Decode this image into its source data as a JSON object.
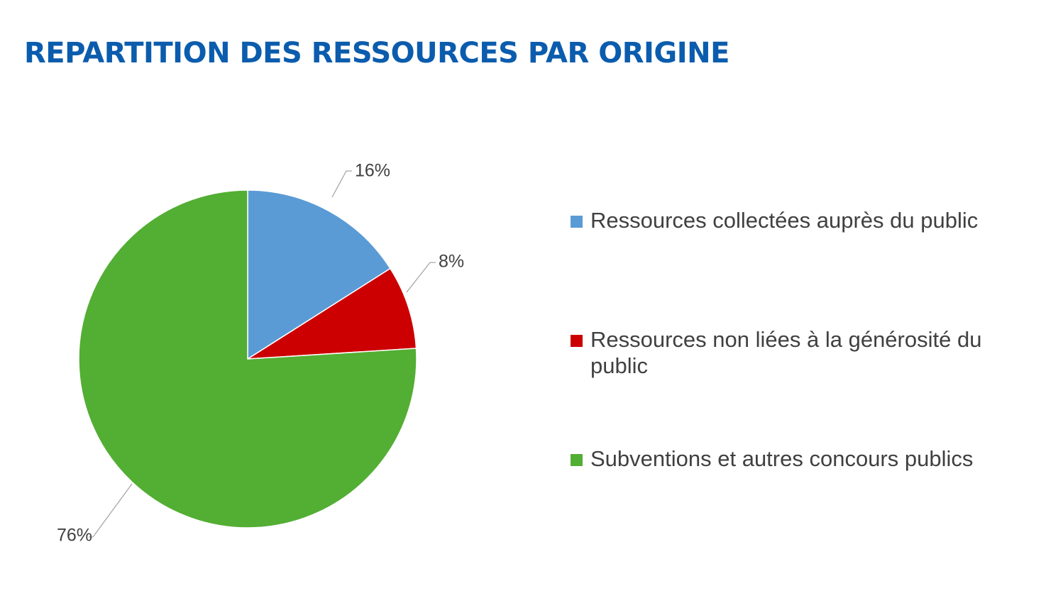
{
  "page": {
    "title": "REPARTITION DES RESSOURCES PAR ORIGINE",
    "title_color": "#0b5cad"
  },
  "chart_data": {
    "type": "pie",
    "title": "REPARTITION DES RESSOURCES PAR ORIGINE",
    "start_angle_deg": 0,
    "direction": "clockwise",
    "legend_position": "right",
    "slices": [
      {
        "label": "Ressources collectées auprès du public",
        "value": 16,
        "display": "16%",
        "color": "#5b9bd5"
      },
      {
        "label": "Ressources non liées à la générosité du public",
        "value": 8,
        "display": "8%",
        "color": "#cc0000"
      },
      {
        "label": "Subventions et autres concours publics",
        "value": 76,
        "display": "76%",
        "color": "#53ae34"
      }
    ]
  }
}
